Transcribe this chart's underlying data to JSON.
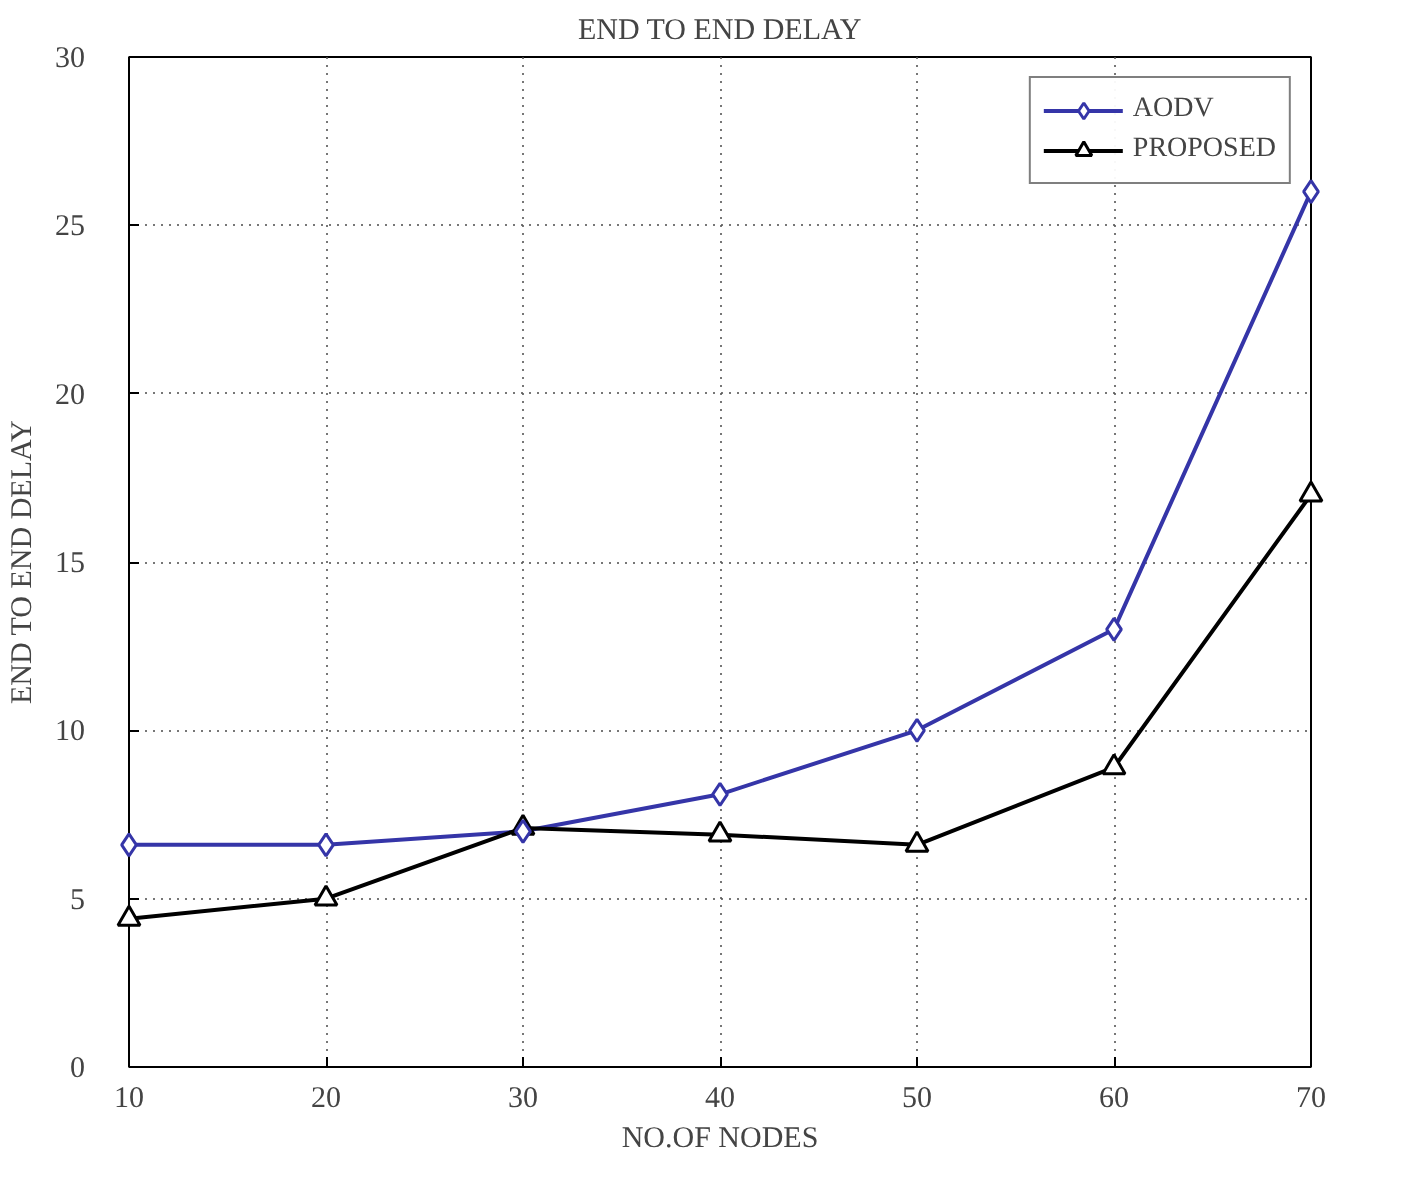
{
  "chart_data": {
    "type": "line",
    "title": "END TO END DELAY",
    "xlabel": "NO.OF NODES",
    "ylabel": "END TO END DELAY",
    "x": [
      10,
      20,
      30,
      40,
      50,
      60,
      70
    ],
    "series": [
      {
        "name": "AODV",
        "color": "#3535a8",
        "marker": "diamond",
        "values": [
          6.6,
          6.6,
          7.0,
          8.1,
          10.0,
          13.0,
          26.0
        ]
      },
      {
        "name": "PROPOSED",
        "color": "#000000",
        "marker": "triangle",
        "values": [
          4.4,
          5.0,
          7.1,
          6.9,
          6.6,
          8.9,
          17.0
        ]
      }
    ],
    "xlim": [
      10,
      70
    ],
    "xticks": [
      10,
      20,
      30,
      40,
      50,
      60,
      70
    ],
    "ylim": [
      0,
      30
    ],
    "yticks": [
      0,
      5,
      10,
      15,
      20,
      25,
      30
    ],
    "grid": true,
    "legend": "top right",
    "line_style": "solid"
  }
}
